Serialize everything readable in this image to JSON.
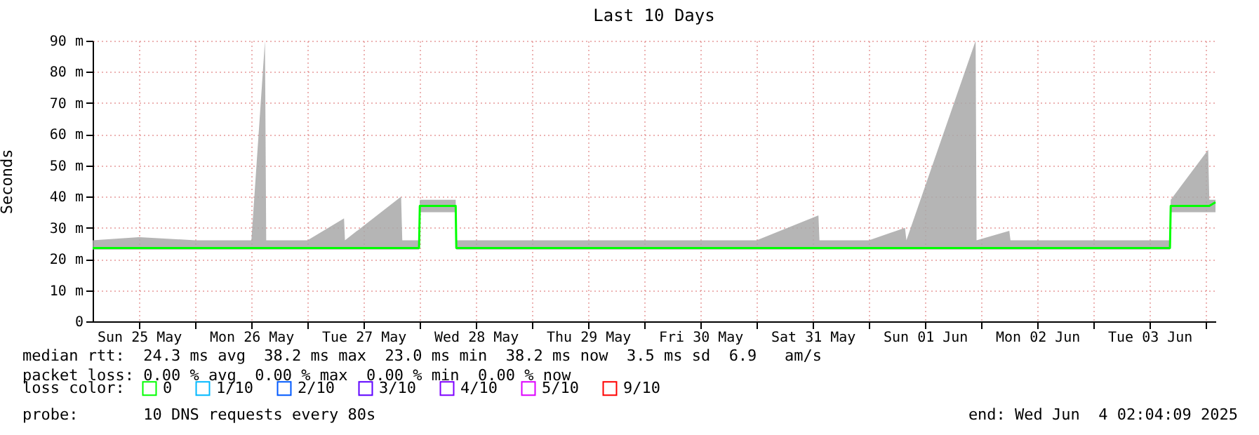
{
  "chart_data": {
    "type": "line",
    "title": "Last 10 Days",
    "ylabel": "Seconds",
    "legend_title": "loss color:",
    "legend": "bottom",
    "grid": true,
    "xlim": [
      "2025-05-25T02:04",
      "2025-06-04T02:04"
    ],
    "xticks": [
      {
        "value": "2025-05-25T12:00",
        "label": "Sun 25 May"
      },
      {
        "value": "2025-05-26T00:00",
        "label": null
      },
      {
        "value": "2025-05-26T12:00",
        "label": "Mon 26 May"
      },
      {
        "value": "2025-05-27T00:00",
        "label": null
      },
      {
        "value": "2025-05-27T12:00",
        "label": "Tue 27 May"
      },
      {
        "value": "2025-05-28T00:00",
        "label": null
      },
      {
        "value": "2025-05-28T12:00",
        "label": "Wed 28 May"
      },
      {
        "value": "2025-05-29T00:00",
        "label": null
      },
      {
        "value": "2025-05-29T12:00",
        "label": "Thu 29 May"
      },
      {
        "value": "2025-05-30T00:00",
        "label": null
      },
      {
        "value": "2025-05-30T12:00",
        "label": "Fri 30 May"
      },
      {
        "value": "2025-05-31T00:00",
        "label": null
      },
      {
        "value": "2025-05-31T12:00",
        "label": "Sat 31 May"
      },
      {
        "value": "2025-06-01T00:00",
        "label": null
      },
      {
        "value": "2025-06-01T12:00",
        "label": "Sun 01 Jun"
      },
      {
        "value": "2025-06-02T00:00",
        "label": null
      },
      {
        "value": "2025-06-02T12:00",
        "label": "Mon 02 Jun"
      },
      {
        "value": "2025-06-03T00:00",
        "label": null
      },
      {
        "value": "2025-06-03T12:00",
        "label": "Tue 03 Jun"
      },
      {
        "value": "2025-06-04T00:00",
        "label": null
      }
    ],
    "ylim": [
      0,
      90
    ],
    "yticks": [
      0,
      {
        "value": 10,
        "label": "10 m"
      },
      {
        "value": 20,
        "label": "20 m"
      },
      {
        "value": 30,
        "label": "30 m"
      },
      {
        "value": 40,
        "label": "40 m"
      },
      {
        "value": 50,
        "label": "50 m"
      },
      {
        "value": 60,
        "label": "60 m"
      },
      {
        "value": 70,
        "label": "70 m"
      },
      {
        "value": 80,
        "label": "80 m"
      },
      {
        "value": 90,
        "label": "90 m"
      }
    ],
    "series": [
      {
        "name": "0",
        "color": "#00ff00",
        "x": [
          "2025-05-25T02:04",
          "2025-05-25T12:00",
          "2025-05-26T00:00",
          "2025-05-26T12:00",
          "2025-05-26T14:54",
          "2025-05-26T15:10",
          "2025-05-27T00:00",
          "2025-05-27T07:48",
          "2025-05-27T08:00",
          "2025-05-27T20:00",
          "2025-05-27T20:15",
          "2025-05-27T23:50",
          "2025-05-28T00:00",
          "2025-05-28T07:40",
          "2025-05-28T07:48",
          "2025-05-28T12:00",
          "2025-05-29T00:00",
          "2025-05-29T12:00",
          "2025-05-30T00:00",
          "2025-05-30T12:00",
          "2025-05-31T00:00",
          "2025-05-31T13:12",
          "2025-05-31T13:25",
          "2025-06-01T00:00",
          "2025-06-01T07:42",
          "2025-06-01T08:00",
          "2025-06-01T22:48",
          "2025-06-01T23:00",
          "2025-06-02T06:00",
          "2025-06-02T06:15",
          "2025-06-02T12:00",
          "2025-06-03T00:00",
          "2025-06-03T16:20",
          "2025-06-03T16:30",
          "2025-06-04T00:30",
          "2025-06-04T00:45",
          "2025-06-04T02:04"
        ],
        "values": [
          23.5,
          23.5,
          23.5,
          23.5,
          23.5,
          23.5,
          23.5,
          23.5,
          23.5,
          23.5,
          23.5,
          23.5,
          37,
          37,
          23.5,
          23.5,
          23.5,
          23.5,
          23.5,
          23.5,
          23.5,
          23.5,
          23.5,
          23.5,
          23.5,
          23.5,
          23.5,
          23.5,
          23.5,
          23.5,
          23.5,
          23.5,
          23.5,
          37,
          37,
          37,
          38.2
        ],
        "lower": [
          23,
          23,
          23,
          23,
          23,
          23,
          23,
          23,
          23,
          23,
          23,
          23,
          35,
          35,
          23,
          23,
          23,
          23,
          23,
          23,
          23,
          23,
          23,
          23,
          23,
          23,
          23,
          23,
          23,
          23,
          23,
          23,
          23,
          35,
          35,
          35,
          35
        ],
        "upper": [
          26,
          27,
          26,
          26,
          90,
          26,
          26,
          33,
          26,
          40,
          26,
          26,
          39,
          39,
          26,
          26,
          26,
          26,
          26,
          26,
          26,
          34,
          26,
          26,
          30,
          26,
          90,
          26,
          29,
          26,
          26,
          26,
          26,
          39,
          55,
          39,
          39
        ]
      },
      {
        "name": "1/10",
        "color": "#00b8ff"
      },
      {
        "name": "2/10",
        "color": "#0059ff"
      },
      {
        "name": "3/10",
        "color": "#5e00ff"
      },
      {
        "name": "4/10",
        "color": "#7e00ff"
      },
      {
        "name": "5/10",
        "color": "#dd00ff"
      },
      {
        "name": "9/10",
        "color": "#ff0000"
      }
    ],
    "annotations": [
      "median rtt:  24.3 ms avg  38.2 ms max  23.0 ms min  38.2 ms now  3.5 ms sd  6.9   am/s",
      "packet loss: 0.00 % avg  0.00 % max  0.00 % min  0.00 % now",
      "probe:       10 DNS requests every 80s",
      "end: Wed Jun  4 02:04:09 2025"
    ]
  }
}
